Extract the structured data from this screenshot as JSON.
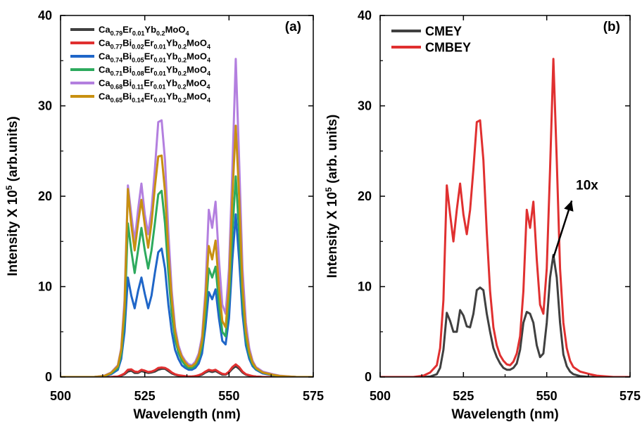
{
  "chart_data": [
    {
      "type": "line",
      "panel_label": "(a)",
      "xlabel": "Wavelength (nm)",
      "ylabel": "Intensity X 10^5 (arb.units)",
      "ylabel_parts": {
        "pre": "Intensity X 10",
        "sup": "5",
        "post": " (arb.units)"
      },
      "xlim": [
        500,
        575
      ],
      "ylim": [
        0,
        40
      ],
      "xticks": [
        500,
        525,
        550,
        575
      ],
      "yticks": [
        0,
        10,
        20,
        30,
        40
      ],
      "grid": false,
      "legend_position": "top-left",
      "x": [
        500,
        505,
        510,
        513,
        515,
        517,
        518,
        519,
        520,
        521,
        522,
        523,
        524,
        525,
        526,
        527,
        528,
        529,
        530,
        531,
        532,
        533,
        534,
        535,
        536,
        537,
        538,
        539,
        540,
        541,
        542,
        543,
        544,
        545,
        546,
        547,
        548,
        549,
        550,
        551,
        552,
        553,
        554,
        555,
        556,
        557,
        558,
        560,
        563,
        565,
        570,
        575
      ],
      "series": [
        {
          "name": "Ca0.79Er0.01Yb0.2MoO4",
          "legend_parts": [
            [
              "Ca",
              ""
            ],
            [
              "0.79",
              "sub"
            ],
            [
              "Er",
              ""
            ],
            [
              "0.01",
              "sub"
            ],
            [
              "Yb",
              ""
            ],
            [
              "0.2",
              "sub"
            ],
            [
              "MoO",
              ""
            ],
            [
              "4",
              "sub"
            ]
          ],
          "color": "#404040",
          "values": [
            0,
            0,
            0,
            0,
            0,
            0.05,
            0.15,
            0.3,
            0.6,
            0.7,
            0.45,
            0.45,
            0.65,
            0.55,
            0.45,
            0.5,
            0.6,
            0.8,
            0.9,
            0.9,
            0.65,
            0.4,
            0.25,
            0.15,
            0.1,
            0.05,
            0.05,
            0.05,
            0.1,
            0.15,
            0.25,
            0.5,
            0.65,
            0.55,
            0.65,
            0.45,
            0.25,
            0.25,
            0.5,
            0.9,
            1.2,
            0.9,
            0.5,
            0.25,
            0.15,
            0.1,
            0.05,
            0,
            0,
            0,
            0,
            0
          ]
        },
        {
          "name": "Ca0.77Bi0.02Er0.01Yb0.2MoO4",
          "legend_parts": [
            [
              "Ca",
              ""
            ],
            [
              "0.77",
              "sub"
            ],
            [
              "Bi",
              ""
            ],
            [
              "0.02",
              "sub"
            ],
            [
              "Er",
              ""
            ],
            [
              "0.01",
              "sub"
            ],
            [
              "Yb",
              ""
            ],
            [
              "0.2",
              "sub"
            ],
            [
              "MoO",
              ""
            ],
            [
              "4",
              "sub"
            ]
          ],
          "color": "#e03030",
          "values": [
            0,
            0,
            0,
            0,
            0,
            0.05,
            0.2,
            0.4,
            0.8,
            0.85,
            0.6,
            0.55,
            0.8,
            0.7,
            0.55,
            0.6,
            0.75,
            1.0,
            1.05,
            1.0,
            0.8,
            0.5,
            0.3,
            0.2,
            0.15,
            0.1,
            0.05,
            0.05,
            0.1,
            0.2,
            0.35,
            0.6,
            0.8,
            0.7,
            0.8,
            0.55,
            0.35,
            0.3,
            0.6,
            1.1,
            1.4,
            1.1,
            0.6,
            0.3,
            0.2,
            0.1,
            0.05,
            0,
            0,
            0,
            0,
            0
          ]
        },
        {
          "name": "Ca0.74Bi0.05Er0.01Yb0.2MoO4",
          "legend_parts": [
            [
              "Ca",
              ""
            ],
            [
              "0.74",
              "sub"
            ],
            [
              "Bi",
              ""
            ],
            [
              "0.05",
              "sub"
            ],
            [
              "Er",
              ""
            ],
            [
              "0.01",
              "sub"
            ],
            [
              "Yb",
              ""
            ],
            [
              "0.2",
              "sub"
            ],
            [
              "MoO",
              ""
            ],
            [
              "4",
              "sub"
            ]
          ],
          "color": "#1f66c8",
          "values": [
            0,
            0,
            0,
            0.1,
            0.3,
            0.8,
            2.0,
            5.0,
            11.0,
            9.0,
            7.6,
            9.5,
            11.0,
            9.2,
            7.6,
            9.0,
            11.5,
            13.8,
            14.2,
            12.0,
            8.0,
            5.0,
            3.0,
            2.0,
            1.3,
            1.0,
            0.8,
            0.8,
            1.0,
            1.5,
            2.6,
            5.5,
            9.4,
            8.6,
            9.7,
            6.5,
            4.0,
            3.6,
            6.5,
            13.0,
            18.0,
            13.0,
            7.0,
            3.5,
            2.0,
            1.2,
            0.8,
            0.4,
            0.2,
            0.1,
            0,
            0
          ]
        },
        {
          "name": "Ca0.71Bi0.08Er0.01Yb0.2MoO4",
          "legend_parts": [
            [
              "Ca",
              ""
            ],
            [
              "0.71",
              "sub"
            ],
            [
              "Bi",
              ""
            ],
            [
              "0.08",
              "sub"
            ],
            [
              "Er",
              ""
            ],
            [
              "0.01",
              "sub"
            ],
            [
              "Yb",
              ""
            ],
            [
              "0.2",
              "sub"
            ],
            [
              "MoO",
              ""
            ],
            [
              "4",
              "sub"
            ]
          ],
          "color": "#2daa5e",
          "values": [
            0,
            0,
            0,
            0.1,
            0.4,
            1.0,
            2.5,
            6.5,
            17.0,
            14.0,
            11.5,
            14.0,
            16.5,
            14.0,
            12.0,
            14.0,
            17.0,
            20.2,
            20.6,
            17.0,
            11.5,
            7.0,
            4.2,
            2.7,
            1.8,
            1.3,
            1.0,
            1.0,
            1.3,
            2.0,
            3.4,
            7.0,
            12.0,
            11.0,
            12.2,
            8.2,
            5.0,
            4.5,
            8.5,
            16.0,
            22.2,
            16.0,
            8.5,
            4.2,
            2.4,
            1.4,
            0.9,
            0.5,
            0.2,
            0.1,
            0,
            0
          ]
        },
        {
          "name": "Ca0.68Bi0.11Er0.01Yb0.2MoO4",
          "legend_parts": [
            [
              "Ca",
              ""
            ],
            [
              "0.68",
              "sub"
            ],
            [
              "Bi",
              ""
            ],
            [
              "0.11",
              "sub"
            ],
            [
              "Er",
              ""
            ],
            [
              "0.01",
              "sub"
            ],
            [
              "Yb",
              ""
            ],
            [
              "0.2",
              "sub"
            ],
            [
              "MoO",
              ""
            ],
            [
              "4",
              "sub"
            ]
          ],
          "color": "#b37fdf",
          "values": [
            0,
            0,
            0,
            0.15,
            0.5,
            1.3,
            3.2,
            8.5,
            21.2,
            18.0,
            15.0,
            18.5,
            21.4,
            18.0,
            15.8,
            18.5,
            23.0,
            28.2,
            28.4,
            24.0,
            16.0,
            9.5,
            5.5,
            3.5,
            2.4,
            1.8,
            1.4,
            1.3,
            1.7,
            2.6,
            4.5,
            9.5,
            18.5,
            16.5,
            19.4,
            13.0,
            8.0,
            7.0,
            12.0,
            23.0,
            35.2,
            24.0,
            12.0,
            6.0,
            3.2,
            1.8,
            1.1,
            0.6,
            0.3,
            0.15,
            0,
            0
          ]
        },
        {
          "name": "Ca0.65Bi0.14Er0.01Yb0.2MoO4",
          "legend_parts": [
            [
              "Ca",
              ""
            ],
            [
              "0.65",
              "sub"
            ],
            [
              "Bi",
              ""
            ],
            [
              "0.14",
              "sub"
            ],
            [
              "Er",
              ""
            ],
            [
              "0.01",
              "sub"
            ],
            [
              "Yb",
              ""
            ],
            [
              "0.2",
              "sub"
            ],
            [
              "MoO",
              ""
            ],
            [
              "4",
              "sub"
            ]
          ],
          "color": "#c89010",
          "values": [
            0,
            0,
            0,
            0.12,
            0.45,
            1.2,
            3.0,
            7.8,
            20.8,
            16.8,
            14.0,
            17.0,
            19.6,
            16.8,
            14.3,
            17.0,
            21.0,
            24.4,
            24.5,
            20.5,
            13.8,
            8.5,
            5.0,
            3.2,
            2.2,
            1.6,
            1.2,
            1.2,
            1.5,
            2.3,
            4.0,
            8.5,
            14.5,
            13.0,
            15.1,
            10.0,
            6.2,
            5.5,
            10.0,
            20.0,
            27.8,
            20.0,
            10.0,
            5.0,
            2.8,
            1.6,
            1.0,
            0.5,
            0.25,
            0.12,
            0,
            0
          ]
        }
      ]
    },
    {
      "type": "line",
      "panel_label": "(b)",
      "xlabel": "Wavelength (nm)",
      "ylabel": "Intensity X 10^5 (arb. units)",
      "ylabel_parts": {
        "pre": "Intensity X 10",
        "sup": "5",
        "post": " (arb. units)"
      },
      "xlim": [
        500,
        575
      ],
      "ylim": [
        0,
        40
      ],
      "xticks": [
        500,
        525,
        550,
        575
      ],
      "yticks": [
        0,
        10,
        20,
        30,
        40
      ],
      "grid": false,
      "legend_position": "top-left",
      "annotation": {
        "text": "10x",
        "arrow_from": [
          552,
          13.2
        ],
        "arrow_to": [
          557.5,
          19.5
        ]
      },
      "x": [
        500,
        505,
        510,
        513,
        515,
        517,
        518,
        519,
        520,
        521,
        522,
        523,
        524,
        525,
        526,
        527,
        528,
        529,
        530,
        531,
        532,
        533,
        534,
        535,
        536,
        537,
        538,
        539,
        540,
        541,
        542,
        543,
        544,
        545,
        546,
        547,
        548,
        549,
        550,
        551,
        552,
        553,
        554,
        555,
        556,
        557,
        558,
        560,
        563,
        565,
        570,
        575
      ],
      "series": [
        {
          "name": "CMEY",
          "color": "#404040",
          "values": [
            0,
            0,
            0,
            0,
            0.05,
            0.3,
            1.0,
            3.0,
            7.1,
            6.2,
            5.0,
            5.0,
            7.4,
            6.8,
            5.6,
            5.5,
            7.0,
            9.6,
            9.9,
            9.6,
            7.0,
            5.0,
            3.2,
            2.2,
            1.5,
            1.0,
            0.8,
            0.8,
            1.0,
            1.5,
            3.0,
            6.0,
            7.2,
            7.0,
            6.0,
            3.5,
            2.2,
            2.6,
            6.0,
            11.0,
            13.5,
            11.0,
            6.0,
            2.5,
            1.2,
            0.6,
            0.3,
            0.1,
            0,
            0,
            0,
            0
          ]
        },
        {
          "name": "CMBEY",
          "color": "#e03030",
          "values": [
            0,
            0,
            0,
            0.15,
            0.5,
            1.3,
            3.2,
            8.5,
            21.2,
            18.0,
            15.0,
            18.5,
            21.4,
            18.0,
            15.8,
            18.5,
            23.0,
            28.2,
            28.4,
            24.0,
            16.0,
            9.5,
            5.5,
            3.5,
            2.4,
            1.8,
            1.4,
            1.3,
            1.7,
            2.6,
            4.5,
            9.5,
            18.5,
            16.5,
            19.4,
            13.0,
            8.0,
            7.0,
            12.0,
            23.0,
            35.2,
            24.0,
            12.0,
            6.0,
            3.2,
            1.8,
            1.1,
            0.6,
            0.3,
            0.15,
            0,
            0
          ]
        }
      ]
    }
  ]
}
